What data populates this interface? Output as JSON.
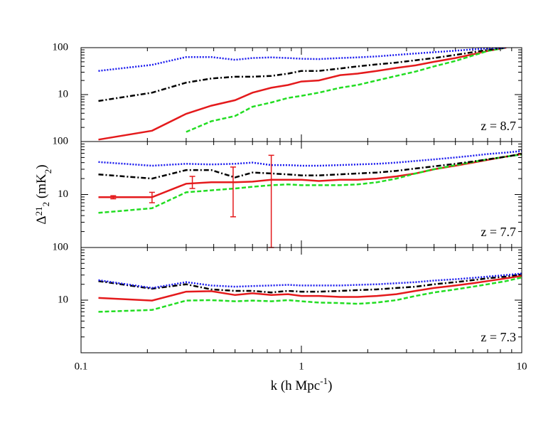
{
  "chart_data": [
    {
      "type": "line",
      "annotation": "z = 8.7",
      "log_x": true,
      "log_y": true,
      "xlim": [
        0.1,
        10
      ],
      "xticks": [
        0.1,
        1,
        10
      ],
      "xticklabels": false,
      "ylim": [
        1,
        100
      ],
      "yticks": [
        10,
        100
      ],
      "x": [
        0.12,
        0.21,
        0.3,
        0.39,
        0.5,
        0.6,
        0.73,
        0.87,
        1.0,
        1.2,
        1.5,
        1.8,
        2.2,
        2.7,
        3.3,
        4,
        5,
        6,
        7,
        8.5,
        10
      ],
      "series": [
        {
          "color": "#e41a1c",
          "dash": "solid",
          "values": [
            1.1,
            1.7,
            3.9,
            5.8,
            7.6,
            11,
            14,
            16,
            19,
            20,
            26,
            28,
            32,
            37,
            42,
            50,
            60,
            72,
            85,
            100,
            null
          ]
        },
        {
          "color": "#22dd22",
          "dash": "dashed",
          "values": [
            null,
            null,
            1.6,
            2.7,
            3.5,
            5.5,
            6.8,
            8.5,
            9.4,
            11,
            14,
            16,
            20,
            25,
            31,
            40,
            52,
            68,
            85,
            100,
            null
          ]
        },
        {
          "color": "#000000",
          "dash": "dashdot",
          "values": [
            7.3,
            11,
            18,
            22,
            24,
            24,
            25,
            28,
            32,
            32,
            36,
            40,
            44,
            48,
            54,
            60,
            70,
            80,
            90,
            100,
            null
          ]
        },
        {
          "color": "#1a1aee",
          "dash": "dotted",
          "values": [
            32,
            43,
            63,
            63,
            55,
            60,
            62,
            60,
            58,
            57,
            60,
            62,
            65,
            70,
            75,
            80,
            86,
            92,
            96,
            100,
            null
          ]
        }
      ]
    },
    {
      "type": "line",
      "annotation": "z = 7.7",
      "log_x": true,
      "log_y": true,
      "ylabel": [
        "Δ",
        "21",
        "2",
        " (mK",
        "2",
        ")"
      ],
      "xlim": [
        0.1,
        10
      ],
      "xticks": [
        0.1,
        1,
        10
      ],
      "xticklabels": false,
      "ylim": [
        1,
        100
      ],
      "yticks": [
        10,
        100
      ],
      "x": [
        0.12,
        0.21,
        0.3,
        0.39,
        0.5,
        0.6,
        0.73,
        0.87,
        1.0,
        1.2,
        1.5,
        1.8,
        2.2,
        2.7,
        3.3,
        4,
        5,
        6,
        7,
        8.5,
        10
      ],
      "series": [
        {
          "color": "#e41a1c",
          "dash": "solid",
          "values": [
            8.9,
            8.9,
            16,
            17,
            17,
            17.5,
            19,
            19,
            19,
            18,
            19,
            19,
            20,
            22,
            25,
            30,
            35,
            40,
            45,
            52,
            58
          ]
        },
        {
          "color": "#22dd22",
          "dash": "dashed",
          "values": [
            4.5,
            5.5,
            11,
            12,
            13,
            14,
            15,
            15.5,
            15,
            15,
            15,
            15.5,
            17,
            20,
            25,
            30,
            36,
            41,
            46,
            52,
            57
          ]
        },
        {
          "color": "#000000",
          "dash": "dashdot",
          "values": [
            24,
            20,
            29,
            29,
            21,
            26,
            25,
            24,
            23,
            23,
            24,
            25,
            26,
            28,
            31,
            34,
            38,
            42,
            46,
            52,
            58
          ]
        },
        {
          "color": "#1a1aee",
          "dash": "dotted",
          "values": [
            41,
            35,
            38,
            37,
            38,
            40,
            36,
            36,
            35,
            35,
            36,
            37,
            38,
            40,
            43,
            46,
            50,
            54,
            58,
            62,
            66
          ]
        }
      ],
      "errorbars": {
        "color": "#e41a1c",
        "x": [
          0.14,
          0.21,
          0.32,
          0.49,
          0.73
        ],
        "values": [
          8.9,
          8.9,
          16,
          17,
          19
        ],
        "lower": [
          8.3,
          7,
          13,
          3.8,
          1
        ],
        "upper": [
          9.5,
          11,
          22,
          33,
          55
        ]
      }
    },
    {
      "type": "line",
      "annotation": "z = 7.3",
      "log_x": true,
      "log_y": true,
      "xlabel": [
        "k  (h  Mpc",
        "-1",
        ")"
      ],
      "xlim": [
        0.1,
        10
      ],
      "xticks": [
        0.1,
        1,
        10
      ],
      "xticklabels": true,
      "ylim": [
        1,
        100
      ],
      "yticks": [
        10,
        100
      ],
      "x": [
        0.12,
        0.21,
        0.3,
        0.39,
        0.5,
        0.6,
        0.73,
        0.87,
        1.0,
        1.2,
        1.5,
        1.8,
        2.2,
        2.7,
        3.3,
        4,
        5,
        6,
        7,
        8.5,
        10
      ],
      "series": [
        {
          "color": "#e41a1c",
          "dash": "solid",
          "values": [
            11,
            9.8,
            14.5,
            14.8,
            12.5,
            13.5,
            12.5,
            13,
            12,
            12,
            11.5,
            11.5,
            12,
            13,
            15,
            17,
            19,
            21,
            23,
            26,
            29
          ]
        },
        {
          "color": "#22dd22",
          "dash": "dashed",
          "values": [
            6,
            6.5,
            9.8,
            10,
            9.5,
            9.8,
            9.5,
            10,
            9.5,
            9,
            8.8,
            8.5,
            9,
            10,
            12,
            14,
            16,
            18,
            20,
            23,
            27
          ]
        },
        {
          "color": "#000000",
          "dash": "dashdot",
          "values": [
            23,
            16.5,
            20,
            16,
            15,
            15,
            14,
            15,
            14.5,
            14.5,
            15,
            15.5,
            16,
            17,
            18,
            20,
            22,
            24,
            26,
            28,
            31
          ]
        },
        {
          "color": "#1a1aee",
          "dash": "dotted",
          "values": [
            24,
            17,
            22,
            19,
            18,
            18.5,
            19,
            19.5,
            19,
            19,
            19,
            19.5,
            20,
            21,
            22,
            23.5,
            25,
            26.5,
            28,
            30,
            32
          ]
        }
      ]
    }
  ]
}
